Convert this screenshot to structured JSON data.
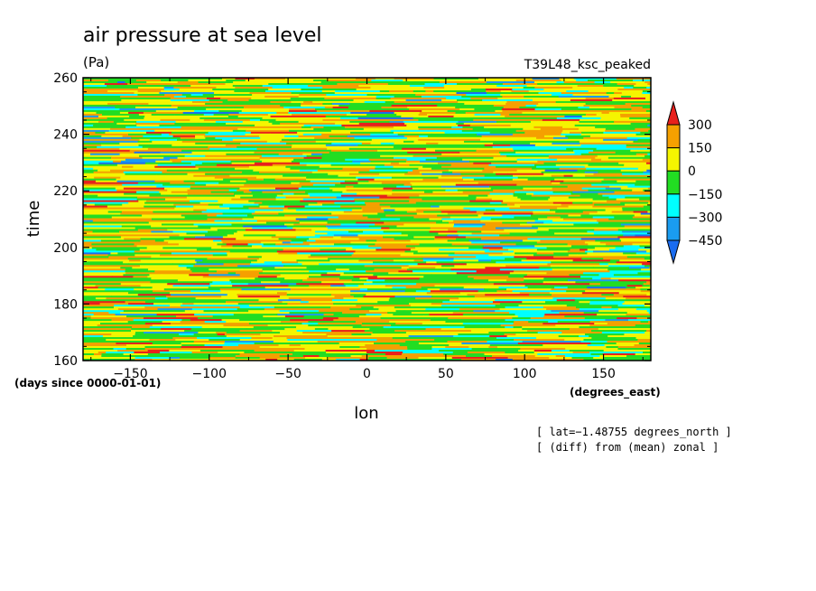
{
  "chart_data": {
    "type": "heatmap",
    "title": "air pressure at sea level",
    "units": "(Pa)",
    "run_label": "T39L48_ksc_peaked",
    "xlabel": "lon",
    "x_units": "(degrees_east)",
    "ylabel": "time",
    "y_units": "(days since 0000-01-01)",
    "xlim": [
      -180,
      180
    ],
    "ylim": [
      160,
      260
    ],
    "x_ticks": [
      "-150",
      "-100",
      "-50",
      "0",
      "50",
      "100",
      "150"
    ],
    "y_ticks": [
      "160",
      "180",
      "200",
      "220",
      "240",
      "260"
    ],
    "colorbar": {
      "labels": [
        "300",
        "150",
        "0",
        "−150",
        "−300",
        "−450"
      ],
      "bin_colors": [
        "#e8201c",
        "#f5a000",
        "#f5f500",
        "#22dd22",
        "#00ffff",
        "#1a9cf0",
        "#1a6cf0"
      ]
    },
    "annotations": [
      "[ lat=−1.48755 degrees_north ]",
      "[ (diff) from (mean) zonal ]"
    ]
  }
}
